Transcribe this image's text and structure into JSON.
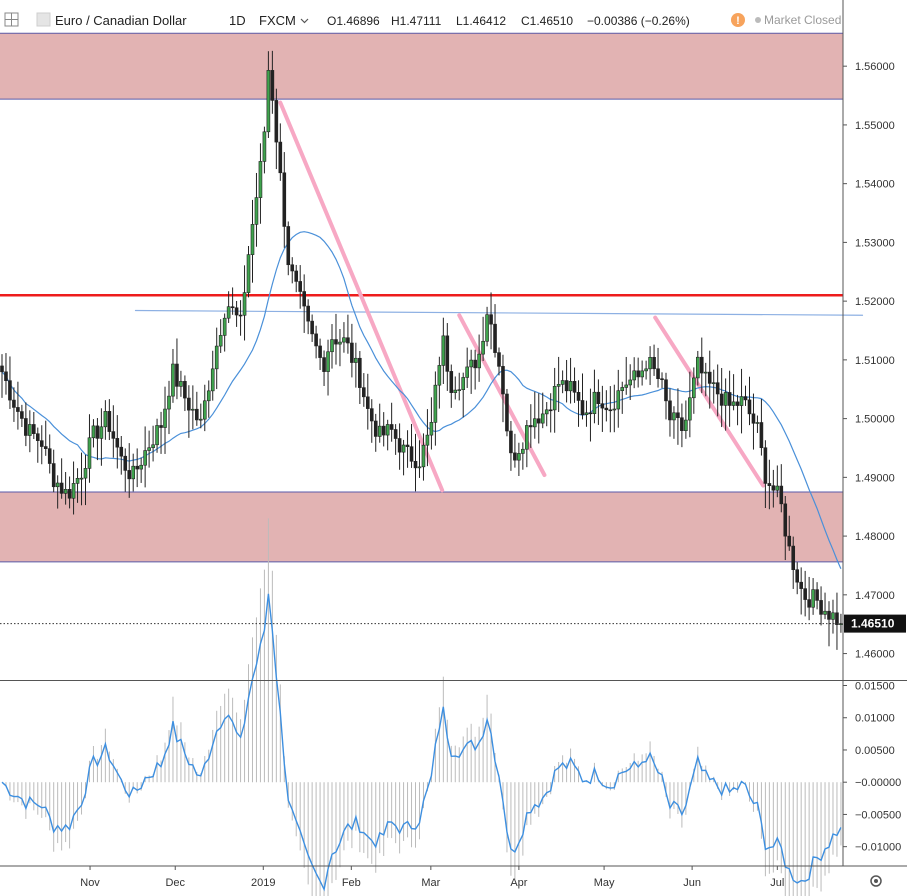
{
  "header": {
    "symbol_name": "Euro / Canadian Dollar",
    "interval": "1D",
    "exchange": "FXCM",
    "open": "O1.46896",
    "high": "H1.47111",
    "low": "L1.46412",
    "close": "C1.46510",
    "change": "−0.00386 (−0.26%)",
    "market_status": "Market Closed",
    "status_icon": "info-icon",
    "status_color": "#f7a35c"
  },
  "chart_data": [
    {
      "type": "candlestick",
      "title": "",
      "ylim": [
        1.4555,
        1.5665
      ],
      "yticks": [
        "1.56000",
        "1.55000",
        "1.54000",
        "1.53000",
        "1.52000",
        "1.51000",
        "1.50000",
        "1.49000",
        "1.48000",
        "1.47000",
        "1.46000"
      ],
      "ytick_values": [
        1.56,
        1.55,
        1.54,
        1.53,
        1.52,
        1.51,
        1.5,
        1.49,
        1.48,
        1.47,
        1.46
      ],
      "xticks": [
        "Nov",
        "Dec",
        "2019",
        "Feb",
        "Mar",
        "Apr",
        "May",
        "Jun",
        "Jul"
      ],
      "last_price_label": "1.46510",
      "last_price": 1.4651,
      "zones": [
        {
          "name": "supply-zone",
          "from": 1.5544,
          "to": 1.5656,
          "color": "#e2b3b3"
        },
        {
          "name": "demand-zone",
          "from": 1.4756,
          "to": 1.4875,
          "color": "#e2b3b3"
        }
      ],
      "horizontal_lines": [
        {
          "name": "resistance-line",
          "y": 1.521,
          "color": "#ee1c1c"
        }
      ],
      "trend_lines": [
        {
          "name": "ma-trend-line",
          "from": [
            "2018-11-17",
            1.5184
          ],
          "to": [
            "2019-07-31",
            1.5176
          ],
          "color": "#8db0e3"
        },
        {
          "name": "pink-trend-line-1",
          "from": [
            "2019-01-07",
            1.5538
          ],
          "to": [
            "2019-03-05",
            1.4878
          ],
          "color": "#f7a8c4"
        },
        {
          "name": "pink-trend-line-2",
          "from": [
            "2019-03-11",
            1.5176
          ],
          "to": [
            "2019-04-10",
            1.4904
          ],
          "color": "#f7a8c4"
        },
        {
          "name": "pink-trend-line-3",
          "from": [
            "2019-05-19",
            1.5172
          ],
          "to": [
            "2019-06-26",
            1.4886
          ],
          "color": "#f7a8c4"
        }
      ],
      "up_color": "#3fa34d",
      "down_color": "#222222",
      "ma_color": "#4a90d9",
      "anchors": [
        [
          "2018-10-01",
          1.508
        ],
        [
          "2018-10-05",
          1.503
        ],
        [
          "2018-10-10",
          1.498
        ],
        [
          "2018-10-15",
          1.496
        ],
        [
          "2018-10-19",
          1.49
        ],
        [
          "2018-10-24",
          1.487
        ],
        [
          "2018-10-29",
          1.491
        ],
        [
          "2018-11-02",
          1.497
        ],
        [
          "2018-11-07",
          1.5
        ],
        [
          "2018-11-12",
          1.493
        ],
        [
          "2018-11-16",
          1.49
        ],
        [
          "2018-11-21",
          1.495
        ],
        [
          "2018-11-26",
          1.499
        ],
        [
          "2018-11-30",
          1.508
        ],
        [
          "2018-12-05",
          1.503
        ],
        [
          "2018-12-10",
          1.499
        ],
        [
          "2018-12-14",
          1.509
        ],
        [
          "2018-12-19",
          1.52
        ],
        [
          "2018-12-24",
          1.516
        ],
        [
          "2018-12-27",
          1.529
        ],
        [
          "2019-01-01",
          1.546
        ],
        [
          "2019-01-03",
          1.561
        ],
        [
          "2019-01-07",
          1.541
        ],
        [
          "2019-01-10",
          1.526
        ],
        [
          "2019-01-14",
          1.52
        ],
        [
          "2019-01-17",
          1.515
        ],
        [
          "2019-01-22",
          1.509
        ],
        [
          "2019-01-25",
          1.514
        ],
        [
          "2019-01-30",
          1.513
        ],
        [
          "2019-02-04",
          1.507
        ],
        [
          "2019-02-07",
          1.501
        ],
        [
          "2019-02-11",
          1.497
        ],
        [
          "2019-02-15",
          1.498
        ],
        [
          "2019-02-20",
          1.494
        ],
        [
          "2019-02-25",
          1.493
        ],
        [
          "2019-03-01",
          1.498
        ],
        [
          "2019-03-05",
          1.514
        ],
        [
          "2019-03-08",
          1.506
        ],
        [
          "2019-03-13",
          1.507
        ],
        [
          "2019-03-18",
          1.511
        ],
        [
          "2019-03-21",
          1.519
        ],
        [
          "2019-03-26",
          1.507
        ],
        [
          "2019-03-29",
          1.493
        ],
        [
          "2019-04-02",
          1.496
        ],
        [
          "2019-04-05",
          1.5
        ],
        [
          "2019-04-10",
          1.501
        ],
        [
          "2019-04-15",
          1.506
        ],
        [
          "2019-04-19",
          1.505
        ],
        [
          "2019-04-24",
          1.501
        ],
        [
          "2019-04-29",
          1.504
        ],
        [
          "2019-05-03",
          1.502
        ],
        [
          "2019-05-08",
          1.506
        ],
        [
          "2019-05-13",
          1.507
        ],
        [
          "2019-05-16",
          1.51
        ],
        [
          "2019-05-21",
          1.506
        ],
        [
          "2019-05-24",
          1.5
        ],
        [
          "2019-05-29",
          1.498
        ],
        [
          "2019-06-03",
          1.509
        ],
        [
          "2019-06-06",
          1.506
        ],
        [
          "2019-06-11",
          1.504
        ],
        [
          "2019-06-14",
          1.502
        ],
        [
          "2019-06-19",
          1.503
        ],
        [
          "2019-06-24",
          1.498
        ],
        [
          "2019-06-27",
          1.49
        ],
        [
          "2019-07-02",
          1.486
        ],
        [
          "2019-07-05",
          1.478
        ],
        [
          "2019-07-10",
          1.47
        ],
        [
          "2019-07-15",
          1.469
        ],
        [
          "2019-07-19",
          1.467
        ],
        [
          "2019-07-24",
          1.4651
        ]
      ]
    },
    {
      "type": "line",
      "title": "",
      "ylim": [
        -0.013,
        0.0157
      ],
      "yticks": [
        "0.01500",
        "0.01000",
        "0.00500",
        "−0.00000",
        "−0.00500",
        "−0.01000"
      ],
      "ytick_values": [
        0.015,
        0.01,
        0.005,
        0.0,
        -0.005,
        -0.01
      ],
      "line_color": "#3d8fe0",
      "histogram_color": "#bbbbbb"
    }
  ]
}
